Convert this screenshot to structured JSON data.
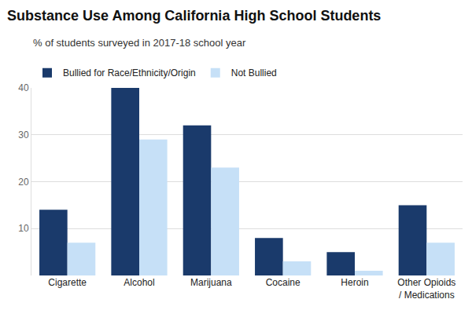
{
  "chart_data": {
    "type": "bar",
    "title": "Substance Use Among California High School Students",
    "subtitle": "% of students surveyed in 2017-18 school year",
    "categories": [
      "Cigarette",
      "Alcohol",
      "Marijuana",
      "Cocaine",
      "Heroin",
      "Other Opioids / Medications"
    ],
    "series": [
      {
        "name": "Bullied for Race/Ethnicity/Origin",
        "color": "#1a3a6b",
        "values": [
          14,
          40,
          32,
          8,
          5,
          15
        ]
      },
      {
        "name": "Not Bullied",
        "color": "#c6e0f7",
        "values": [
          7,
          29,
          23,
          3,
          1,
          7
        ]
      }
    ],
    "ylim": [
      0,
      40
    ],
    "yticks": [
      10,
      20,
      30,
      40
    ],
    "grid": true,
    "legend": "top left"
  }
}
